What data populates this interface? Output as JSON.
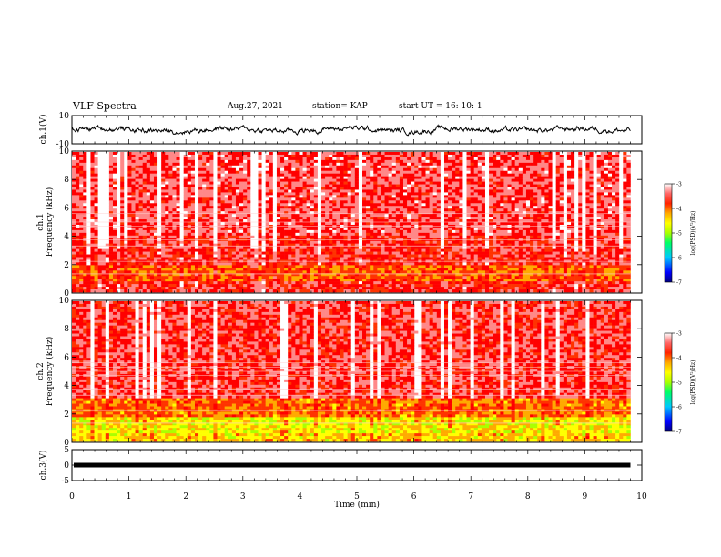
{
  "header": {
    "title": "VLF Spectra",
    "date": "Aug.27, 2021",
    "station": "station= KAP",
    "start": "start  UT  =   16: 10: 1"
  },
  "colors": {
    "waveform": "#000000",
    "colormap": [
      "#00007f",
      "#0000ff",
      "#00c8ff",
      "#00ff66",
      "#aaff00",
      "#ffff00",
      "#ffaa00",
      "#ff3300",
      "#ff0000",
      "#ff8888",
      "#ffffff"
    ]
  },
  "chart_data": [
    {
      "type": "line",
      "name": "ch1-waveform",
      "ylabel": "ch.1(V)",
      "ylim": [
        -10,
        10
      ],
      "y_ticks": [
        "10",
        "-10"
      ],
      "x_range_min": [
        0,
        9.8
      ],
      "description_mean_V": 0,
      "amplitude_V": [
        -3,
        3
      ]
    },
    {
      "type": "heatmap",
      "name": "ch1-spectrogram",
      "ylabel": "ch.1\nFrequency (kHz)",
      "ylim_khz": [
        0,
        10
      ],
      "y_ticks": [
        "0",
        "2",
        "4",
        "6",
        "8",
        "10"
      ],
      "xlim_min": [
        0,
        10
      ],
      "colorbar": {
        "label": "log(PSD)(V²/Hz)",
        "range": [
          -7,
          -3
        ],
        "ticks": [
          "-3",
          "-4",
          "-5",
          "-6",
          "-7"
        ]
      },
      "bands_log_psd": [
        {
          "f_khz": [
            0.0,
            0.8
          ],
          "level": -3.8
        },
        {
          "f_khz": [
            0.8,
            2.0
          ],
          "level": -4.3
        },
        {
          "f_khz": [
            2.0,
            4.0
          ],
          "level": -3.8
        },
        {
          "f_khz": [
            4.0,
            5.3
          ],
          "level": -3.6
        },
        {
          "f_khz": [
            5.3,
            10.0
          ],
          "level": -3.6
        }
      ]
    },
    {
      "type": "heatmap",
      "name": "ch2-spectrogram",
      "ylabel": "ch.2\nFrequency (kHz)",
      "ylim_khz": [
        0,
        10
      ],
      "y_ticks": [
        "0",
        "2",
        "4",
        "6",
        "8",
        "10"
      ],
      "xlim_min": [
        0,
        10
      ],
      "colorbar": {
        "label": "log(PSD)(V²/Hz)",
        "range": [
          -7,
          -3
        ],
        "ticks": [
          "-3",
          "-4",
          "-5",
          "-6",
          "-7"
        ]
      },
      "bands_log_psd": [
        {
          "f_khz": [
            0.0,
            0.5
          ],
          "level": -4.8
        },
        {
          "f_khz": [
            0.5,
            1.8
          ],
          "level": -5.0
        },
        {
          "f_khz": [
            1.8,
            3.0
          ],
          "level": -4.4
        },
        {
          "f_khz": [
            3.0,
            10.0
          ],
          "level": -3.7
        }
      ]
    },
    {
      "type": "line",
      "name": "ch3-waveform",
      "ylabel": "ch.3(V)",
      "ylim": [
        -5,
        5
      ],
      "y_ticks": [
        "5",
        "0",
        "-5"
      ],
      "level_V": 0,
      "xlabel": "Time (min)",
      "xlim": [
        0,
        10
      ],
      "x_ticks": [
        "0",
        "1",
        "2",
        "3",
        "4",
        "5",
        "6",
        "7",
        "8",
        "9",
        "10"
      ]
    }
  ]
}
